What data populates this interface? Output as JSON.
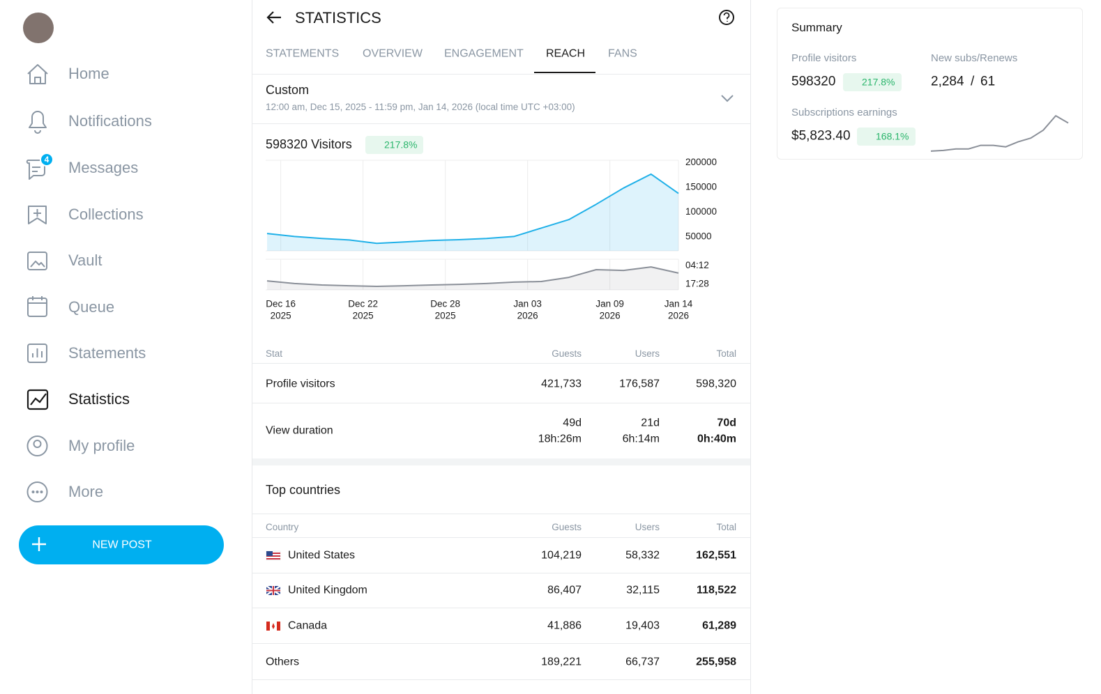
{
  "sidebar": {
    "nav": [
      "Home",
      "Notifications",
      "Messages",
      "Collections",
      "Vault",
      "Queue",
      "Statements",
      "Statistics",
      "My profile",
      "More"
    ],
    "messages_badge": "4",
    "new_post": "NEW POST"
  },
  "header": {
    "title": "STATISTICS",
    "tabs": [
      "STATEMENTS",
      "OVERVIEW",
      "ENGAGEMENT",
      "REACH",
      "FANS"
    ],
    "active_tab": "REACH"
  },
  "range": {
    "label": "Custom",
    "detail": "12:00 am, Dec 15, 2025 - 11:59 pm, Jan 14, 2026 (local time UTC +03:00)"
  },
  "chart_data": [
    {
      "type": "area",
      "title": "598320 Visitors",
      "badge": "217.8%",
      "x": [
        "2025-12-15",
        "2025-12-17",
        "2025-12-19",
        "2025-12-21",
        "2025-12-23",
        "2025-12-25",
        "2025-12-27",
        "2025-12-29",
        "2025-12-31",
        "2026-01-02",
        "2026-01-04",
        "2026-01-06",
        "2026-01-08",
        "2026-01-10",
        "2026-01-12",
        "2026-01-14"
      ],
      "series": [
        {
          "color": "#1fb0e8",
          "values": [
            57000,
            51000,
            47000,
            44000,
            37000,
            40000,
            43000,
            44500,
            47000,
            51000,
            68000,
            85000,
            116000,
            149000,
            177000,
            138000
          ]
        }
      ],
      "ylim": [
        22000,
        205000
      ],
      "yticks": [
        200000,
        150000,
        100000,
        50000
      ],
      "xticks": [
        {
          "value": "2025-12-16",
          "label": "Dec 16",
          "year": "2025"
        },
        {
          "value": "2025-12-22",
          "label": "Dec 22",
          "year": "2025"
        },
        {
          "value": "2025-12-28",
          "label": "Dec 28",
          "year": "2025"
        },
        {
          "value": "2026-01-03",
          "label": "Jan 03",
          "year": "2026"
        },
        {
          "value": "2026-01-09",
          "label": "Jan 09",
          "year": "2026"
        },
        {
          "value": "2026-01-14",
          "label": "Jan 14",
          "year": "2026"
        }
      ],
      "grid": true
    },
    {
      "type": "area",
      "x": [
        "2025-12-15",
        "2025-12-17",
        "2025-12-19",
        "2025-12-21",
        "2025-12-23",
        "2025-12-25",
        "2025-12-27",
        "2025-12-29",
        "2025-12-31",
        "2026-01-02",
        "2026-01-04",
        "2026-01-06",
        "2026-01-08",
        "2026-01-10",
        "2026-01-12",
        "2026-01-14"
      ],
      "series": [
        {
          "color": "#8a8f98",
          "values": [
            34,
            21,
            14,
            10,
            7,
            10,
            14,
            17,
            21,
            28,
            31,
            51,
            89,
            85,
            102,
            72
          ]
        }
      ],
      "ylim": [
        -10,
        140
      ],
      "yticks": [
        {
          "value": 108,
          "label": "04:12"
        },
        {
          "value": 17.47,
          "label": "17:28"
        }
      ],
      "grid": true
    },
    {
      "type": "line",
      "series": [
        {
          "color": "#8a8f98",
          "values": [
            3,
            4,
            6,
            6,
            11,
            11,
            9,
            16,
            21,
            32,
            52,
            42
          ]
        }
      ],
      "ylim": [
        0,
        55
      ]
    }
  ],
  "stats_table": {
    "headers": [
      "Stat",
      "Guests",
      "Users",
      "Total"
    ],
    "rows": [
      [
        "Profile visitors",
        "421,733",
        "176,587",
        "598,320"
      ],
      [
        "View duration",
        [
          "49d",
          "18h:26m"
        ],
        [
          "21d",
          "6h:14m"
        ],
        [
          "70d",
          "0h:40m"
        ]
      ]
    ]
  },
  "countries": {
    "title": "Top countries",
    "headers": [
      "Country",
      "Guests",
      "Users",
      "Total"
    ],
    "rows": [
      [
        "United States",
        "104,219",
        "58,332",
        "162,551"
      ],
      [
        "United Kingdom",
        "86,407",
        "32,115",
        "118,522"
      ],
      [
        "Canada",
        "41,886",
        "19,403",
        "61,289"
      ],
      [
        "Others",
        "189,221",
        "66,737",
        "255,958"
      ]
    ]
  },
  "summary": {
    "title": "Summary",
    "profile_visitors_label": "Profile visitors",
    "profile_visitors": "598320",
    "profile_visitors_change": "217.8%",
    "subs_label": "New subs/Renews",
    "subs_new": "2,284",
    "subs_sep": "/",
    "subs_renews": "61",
    "earnings_label": "Subscriptions earnings",
    "earnings": "$5,823.40",
    "earnings_change": "168.1%"
  }
}
